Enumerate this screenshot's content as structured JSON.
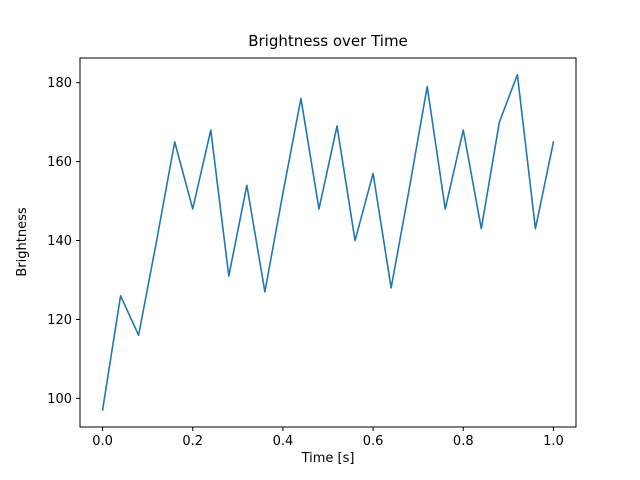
{
  "chart_data": {
    "type": "line",
    "title": "Brightness over Time",
    "xlabel": "Time [s]",
    "ylabel": "Brightness",
    "x": [
      0.0,
      0.04,
      0.08,
      0.12,
      0.16,
      0.2,
      0.24,
      0.28,
      0.32,
      0.36,
      0.4,
      0.44,
      0.48,
      0.52,
      0.56,
      0.6,
      0.64,
      0.68,
      0.72,
      0.76,
      0.8,
      0.84,
      0.88,
      0.92,
      0.96,
      1.0
    ],
    "y": [
      97,
      126,
      116,
      140,
      165,
      148,
      168,
      131,
      154,
      127,
      152,
      176,
      148,
      169,
      140,
      157,
      128,
      153,
      179,
      148,
      168,
      143,
      170,
      182,
      143,
      165
    ],
    "xlim": [
      -0.05,
      1.05
    ],
    "ylim": [
      92.75,
      186.25
    ],
    "xticks": [
      0.0,
      0.2,
      0.4,
      0.6,
      0.8,
      1.0
    ],
    "xtick_labels": [
      "0.0",
      "0.2",
      "0.4",
      "0.6",
      "0.8",
      "1.0"
    ],
    "yticks": [
      100,
      120,
      140,
      160,
      180
    ],
    "ytick_labels": [
      "100",
      "120",
      "140",
      "160",
      "180"
    ],
    "line_color": "#1f77b4",
    "axis_color": "#000000",
    "background_color": "#ffffff",
    "grid": false,
    "legend_position": "none"
  }
}
